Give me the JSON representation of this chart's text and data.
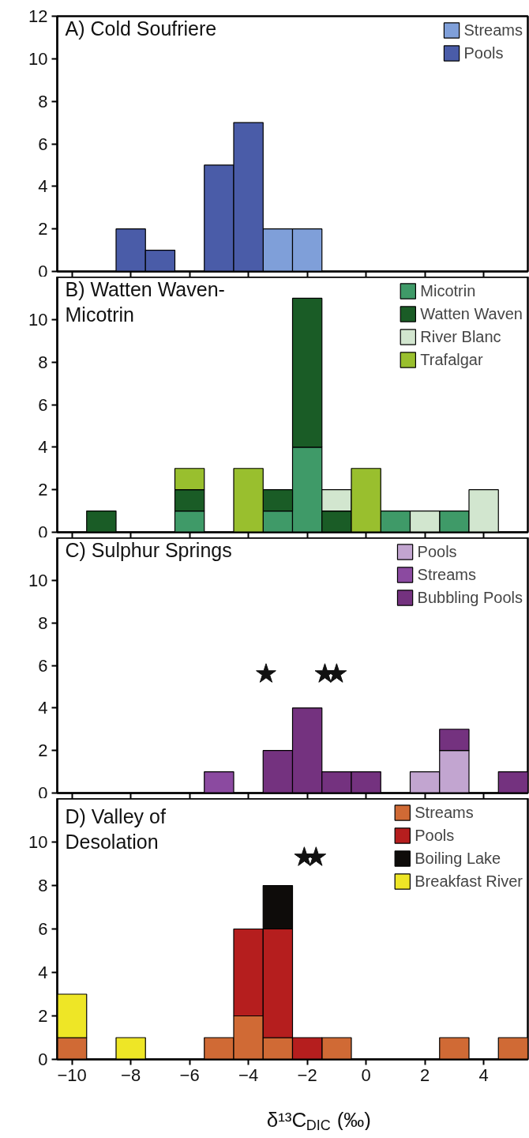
{
  "chart_data": [
    {
      "type": "bar",
      "title": "A) Cold Soufriere",
      "x": [
        -10,
        -9,
        -8,
        -7,
        -6,
        -5,
        -4,
        -3,
        -2,
        -1,
        0,
        1,
        2,
        3,
        4,
        5
      ],
      "stacked": true,
      "xlim": [
        -10.5,
        5.5
      ],
      "xticks": [
        -10,
        -8,
        -6,
        -4,
        -2,
        0,
        2,
        4
      ],
      "ylim": [
        0,
        12
      ],
      "yticks": [
        0,
        2,
        4,
        6,
        8,
        10,
        12
      ],
      "tick_labels": "y",
      "legend": "top right",
      "series": [
        {
          "name": "Streams",
          "color": "#7f9fd9",
          "values": [
            0,
            0,
            0,
            0,
            0,
            0,
            0,
            2,
            2,
            0,
            0,
            0,
            0,
            0,
            0,
            0
          ]
        },
        {
          "name": "Pools",
          "color": "#4a5ca8",
          "values": [
            0,
            0,
            2,
            1,
            0,
            5,
            7,
            0,
            0,
            0,
            0,
            0,
            0,
            0,
            0,
            0
          ]
        }
      ]
    },
    {
      "type": "bar",
      "title": "B) Watten Waven-\nMicotrin",
      "x": [
        -10,
        -9,
        -8,
        -7,
        -6,
        -5,
        -4,
        -3,
        -2,
        -1,
        0,
        1,
        2,
        3,
        4,
        5
      ],
      "stacked": true,
      "xlim": [
        -10.5,
        5.5
      ],
      "xticks": [
        -10,
        -8,
        -6,
        -4,
        -2,
        0,
        2,
        4
      ],
      "ylim": [
        0,
        12
      ],
      "yticks": [
        0,
        2,
        4,
        6,
        8,
        10
      ],
      "tick_labels": "y",
      "legend": "top right",
      "series": [
        {
          "name": "Micotrin",
          "color": "#3f9a68",
          "values": [
            0,
            0,
            0,
            0,
            1,
            0,
            0,
            1,
            4,
            0,
            0,
            1,
            0,
            1,
            0,
            0
          ]
        },
        {
          "name": "Watten Waven",
          "color": "#1a5c26",
          "values": [
            0,
            1,
            0,
            0,
            1,
            0,
            0,
            1,
            7,
            1,
            0,
            0,
            0,
            0,
            0,
            0
          ]
        },
        {
          "name": "River Blanc",
          "color": "#d2e6cf",
          "values": [
            0,
            0,
            0,
            0,
            0,
            0,
            0,
            0,
            0,
            1,
            0,
            0,
            1,
            0,
            2,
            0
          ]
        },
        {
          "name": "Trafalgar",
          "color": "#99bf2e",
          "values": [
            0,
            0,
            0,
            0,
            1,
            0,
            3,
            0,
            0,
            0,
            3,
            0,
            0,
            0,
            0,
            0
          ]
        }
      ]
    },
    {
      "type": "bar",
      "title": "C) Sulphur Springs",
      "x": [
        -10,
        -9,
        -8,
        -7,
        -6,
        -5,
        -4,
        -3,
        -2,
        -1,
        0,
        1,
        2,
        3,
        4,
        5
      ],
      "stacked": true,
      "xlim": [
        -10.5,
        5.5
      ],
      "xticks": [
        -10,
        -8,
        -6,
        -4,
        -2,
        0,
        2,
        4
      ],
      "ylim": [
        0,
        12
      ],
      "yticks": [
        0,
        2,
        4,
        6,
        8,
        10
      ],
      "tick_labels": "y",
      "legend": "top right",
      "series": [
        {
          "name": "Pools",
          "color": "#c2a5d0",
          "values": [
            0,
            0,
            0,
            0,
            0,
            0,
            0,
            0,
            0,
            0,
            0,
            0,
            1,
            2,
            0,
            0
          ]
        },
        {
          "name": "Streams",
          "color": "#8b4aa0",
          "values": [
            0,
            0,
            0,
            0,
            0,
            1,
            0,
            0,
            0,
            0,
            0,
            0,
            0,
            0,
            0,
            0
          ]
        },
        {
          "name": "Bubbling Pools",
          "color": "#74327f",
          "values": [
            0,
            0,
            0,
            0,
            0,
            0,
            0,
            2,
            4,
            1,
            1,
            0,
            0,
            1,
            0,
            1
          ]
        },
        {
          "type": "scatter",
          "marker": "star",
          "color": "#111111",
          "x": [
            -3.4,
            -1.4,
            -1.0
          ],
          "values": [
            5.6,
            5.6,
            5.6
          ]
        }
      ]
    },
    {
      "type": "bar",
      "title": "D) Valley of\nDesolation",
      "xlabel": "δ¹³C$_{DIC}$ (‰)",
      "x": [
        -10,
        -9,
        -8,
        -7,
        -6,
        -5,
        -4,
        -3,
        -2,
        -1,
        0,
        1,
        2,
        3,
        4,
        5
      ],
      "stacked": true,
      "xlim": [
        -10.5,
        5.5
      ],
      "xticks": [
        -10,
        -8,
        -6,
        -4,
        -2,
        0,
        2,
        4
      ],
      "ylim": [
        0,
        12
      ],
      "yticks": [
        0,
        2,
        4,
        6,
        8,
        10
      ],
      "legend": "top right",
      "series": [
        {
          "name": "Streams",
          "color": "#d06a35",
          "values": [
            1,
            0,
            0,
            0,
            0,
            1,
            2,
            1,
            0,
            1,
            0,
            0,
            0,
            1,
            0,
            1
          ]
        },
        {
          "name": "Pools",
          "color": "#b51e1e",
          "values": [
            0,
            0,
            0,
            0,
            0,
            0,
            4,
            5,
            1,
            0,
            0,
            0,
            0,
            0,
            0,
            0
          ]
        },
        {
          "name": "Boiling Lake",
          "color": "#0e0c0a",
          "values": [
            0,
            0,
            0,
            0,
            0,
            0,
            0,
            2,
            0,
            0,
            0,
            0,
            0,
            0,
            0,
            0
          ]
        },
        {
          "name": "Breakfast River",
          "color": "#eee626",
          "values": [
            2,
            0,
            1,
            0,
            0,
            0,
            0,
            0,
            0,
            0,
            0,
            0,
            0,
            0,
            0,
            0
          ]
        },
        {
          "type": "scatter",
          "marker": "star",
          "color": "#111111",
          "x": [
            -2.1,
            -1.7
          ],
          "values": [
            9.3,
            9.3
          ]
        }
      ]
    }
  ]
}
